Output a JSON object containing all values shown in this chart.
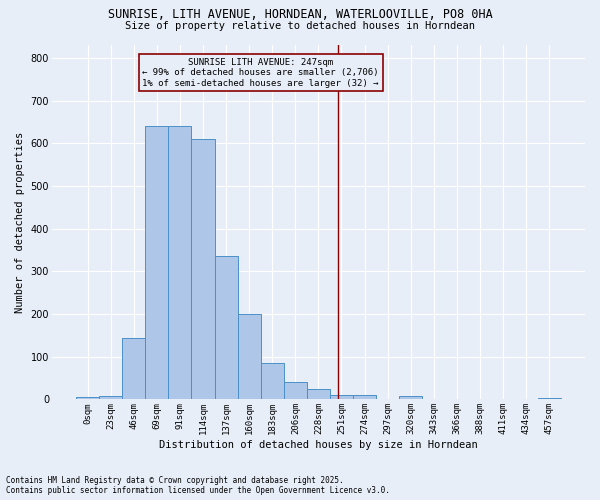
{
  "title_line1": "SUNRISE, LITH AVENUE, HORNDEAN, WATERLOOVILLE, PO8 0HA",
  "title_line2": "Size of property relative to detached houses in Horndean",
  "xlabel": "Distribution of detached houses by size in Horndean",
  "ylabel": "Number of detached properties",
  "categories": [
    "0sqm",
    "23sqm",
    "46sqm",
    "69sqm",
    "91sqm",
    "114sqm",
    "137sqm",
    "160sqm",
    "183sqm",
    "206sqm",
    "228sqm",
    "251sqm",
    "274sqm",
    "297sqm",
    "320sqm",
    "343sqm",
    "366sqm",
    "388sqm",
    "411sqm",
    "434sqm",
    "457sqm"
  ],
  "bar_values": [
    5,
    8,
    145,
    640,
    640,
    610,
    335,
    200,
    85,
    40,
    25,
    10,
    10,
    0,
    8,
    0,
    0,
    0,
    0,
    0,
    4
  ],
  "bar_color": "#aec6e8",
  "bar_edge_color": "#4a90c8",
  "background_color": "#e8eef8",
  "grid_color": "#ffffff",
  "vline_x": 10.85,
  "vline_color": "#8b0000",
  "annotation_text": "SUNRISE LITH AVENUE: 247sqm\n← 99% of detached houses are smaller (2,706)\n1% of semi-detached houses are larger (32) →",
  "annotation_box_color": "#8b0000",
  "ylim": [
    0,
    830
  ],
  "yticks": [
    0,
    100,
    200,
    300,
    400,
    500,
    600,
    700,
    800
  ],
  "footnote": "Contains HM Land Registry data © Crown copyright and database right 2025.\nContains public sector information licensed under the Open Government Licence v3.0."
}
